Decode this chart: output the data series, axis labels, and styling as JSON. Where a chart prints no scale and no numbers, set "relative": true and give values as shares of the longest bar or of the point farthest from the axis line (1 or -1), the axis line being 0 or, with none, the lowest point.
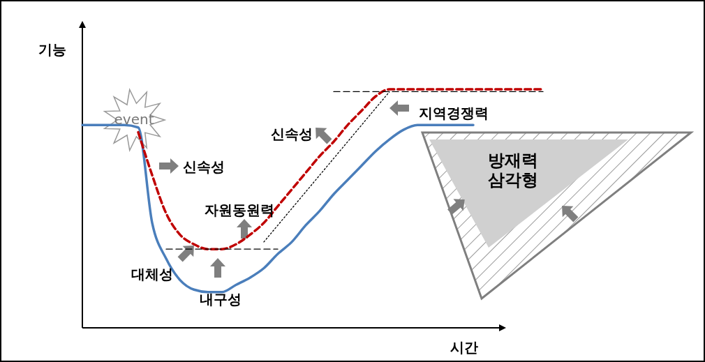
{
  "chart_data": {
    "type": "line",
    "relative": true,
    "xlabel": "시간",
    "ylabel": "기능",
    "legend": false,
    "grid": false,
    "marker": "none",
    "categories": [
      null,
      null,
      null,
      null,
      null,
      null,
      null,
      null,
      null,
      null,
      null,
      null,
      null,
      null,
      null,
      null,
      null,
      null,
      null,
      null,
      null,
      null,
      null,
      null,
      null,
      null,
      null,
      null,
      null,
      null,
      null,
      null,
      null,
      null
    ],
    "series": [
      {
        "color": "#4a7ebb",
        "line_style": "solid",
        "values": [
          0.85,
          0.85,
          0.85,
          0.85,
          0.84,
          0.44,
          0.29,
          0.2,
          0.16,
          0.15,
          0.15,
          0.18,
          0.21,
          0.25,
          0.31,
          0.36,
          0.43,
          0.49,
          0.56,
          0.62,
          0.68,
          0.74,
          0.79,
          0.83,
          0.85,
          0.85,
          0.85,
          0.85,
          0.85,
          null,
          null,
          null,
          null,
          null
        ]
      },
      {
        "color": "#c00000",
        "line_style": "dashed",
        "values": [
          null,
          null,
          null,
          null,
          0.82,
          0.64,
          0.48,
          0.39,
          0.35,
          0.33,
          0.33,
          0.35,
          0.39,
          0.44,
          0.51,
          0.58,
          0.65,
          0.72,
          0.78,
          0.85,
          0.91,
          0.97,
          1,
          1,
          1,
          1,
          1,
          1,
          1,
          1,
          1,
          1,
          1,
          1
        ]
      },
      {
        "color": "#000000",
        "line_style": "dashed",
        "values": [
          null,
          null,
          null,
          null,
          null,
          null,
          0.33,
          0.33,
          0.33,
          0.33,
          0.33,
          0.33,
          0.33,
          0.33,
          0.33,
          null,
          null,
          null,
          null,
          null,
          null,
          null,
          null,
          null,
          null,
          null,
          null,
          null,
          null,
          null,
          null,
          null,
          null,
          null
        ]
      },
      {
        "color": "#000000",
        "line_style": "dashed",
        "values": [
          null,
          null,
          null,
          null,
          null,
          null,
          null,
          null,
          null,
          null,
          null,
          null,
          null,
          null,
          null,
          null,
          null,
          null,
          0.99,
          0.99,
          0.99,
          0.99,
          0.99,
          0.99,
          0.99,
          0.99,
          0.99,
          0.99,
          0.99,
          0.99,
          0.99,
          0.99,
          0.99,
          0.99
        ]
      },
      {
        "color": "#000000",
        "line_style": "dotted",
        "values": [
          null,
          null,
          null,
          null,
          null,
          null,
          null,
          null,
          null,
          null,
          null,
          null,
          null,
          0.36,
          0.43,
          0.5,
          0.57,
          0.64,
          0.71,
          0.78,
          0.85,
          0.92,
          0.99,
          null,
          null,
          null,
          null,
          null,
          null,
          null,
          null,
          null,
          null,
          null
        ]
      }
    ],
    "annotations": [
      "event",
      "신속성",
      "자원동원력",
      "대체성",
      "내구성",
      "신속성",
      "지역경쟁력",
      "방재력\n삼각형"
    ]
  }
}
